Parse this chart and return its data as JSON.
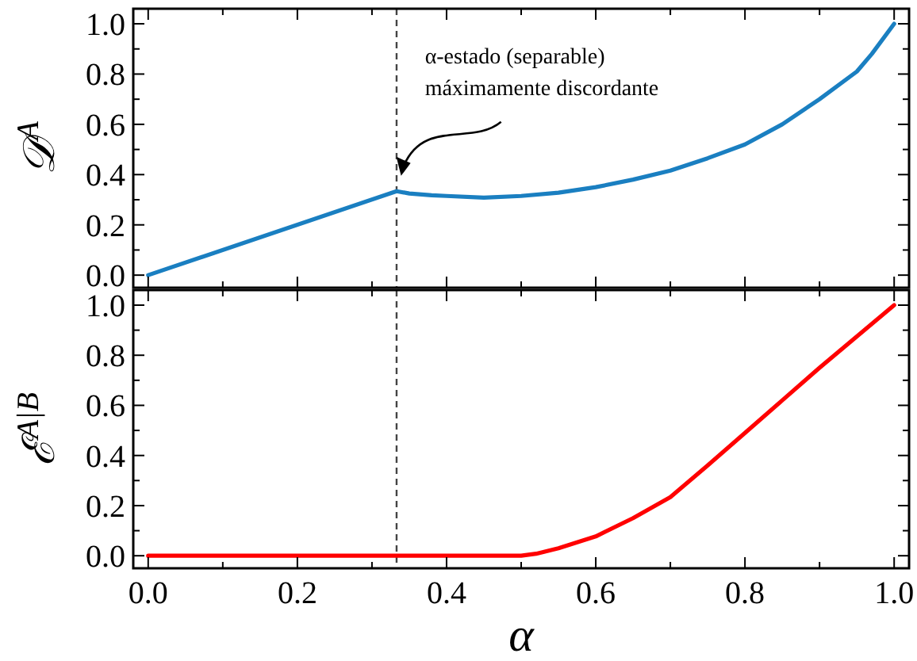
{
  "chart_data": [
    {
      "type": "line",
      "ylabel": "𝒟$^{A}$",
      "xlim": [
        -0.02,
        1.02
      ],
      "ylim": [
        -0.05,
        1.06
      ],
      "xticks": [
        {
          "value": 0,
          "label": null
        },
        {
          "value": 0.1,
          "label": null
        },
        {
          "value": 0.2,
          "label": null
        },
        {
          "value": 0.3,
          "label": null
        },
        {
          "value": 0.4,
          "label": null
        },
        {
          "value": 0.5,
          "label": null
        },
        {
          "value": 0.6,
          "label": null
        },
        {
          "value": 0.7,
          "label": null
        },
        {
          "value": 0.8,
          "label": null
        },
        {
          "value": 0.9,
          "label": null
        },
        {
          "value": 1,
          "label": null
        }
      ],
      "yticks": [
        {
          "value": 0,
          "label": "0.0"
        },
        {
          "value": 0.1,
          "label": null
        },
        {
          "value": 0.2,
          "label": "0.2"
        },
        {
          "value": 0.3,
          "label": null
        },
        {
          "value": 0.4,
          "label": "0.4"
        },
        {
          "value": 0.5,
          "label": null
        },
        {
          "value": 0.6,
          "label": "0.6"
        },
        {
          "value": 0.7,
          "label": null
        },
        {
          "value": 0.8,
          "label": "0.8"
        },
        {
          "value": 0.9,
          "label": null
        },
        {
          "value": 1,
          "label": "1.0"
        }
      ],
      "tick_labels": "y",
      "x": [
        0,
        0.333,
        0.35,
        0.38,
        0.4,
        0.45,
        0.5,
        0.55,
        0.6,
        0.65,
        0.7,
        0.75,
        0.8,
        0.85,
        0.9,
        0.95,
        0.97,
        1.0
      ],
      "series": [
        {
          "color": "#1a7fc1",
          "values": [
            0,
            0.334,
            0.325,
            0.318,
            0.315,
            0.308,
            0.315,
            0.328,
            0.35,
            0.38,
            0.416,
            0.465,
            0.52,
            0.6,
            0.7,
            0.81,
            0.88,
            1.0
          ]
        }
      ],
      "ref_lines": [
        {
          "axis": "x",
          "value": 0.333,
          "color": "#444444",
          "line_style": "dashed"
        }
      ],
      "annotations": [
        "α-estado (separable)\nmáximamente discordante"
      ]
    },
    {
      "type": "line",
      "ylabel": "ℰ$^{A|B}$",
      "xlabel": "α",
      "xlim": [
        -0.02,
        1.02
      ],
      "ylim": [
        -0.05,
        1.06
      ],
      "xticks": [
        {
          "value": 0,
          "label": "0.0"
        },
        {
          "value": 0.1,
          "label": null
        },
        {
          "value": 0.2,
          "label": "0.2"
        },
        {
          "value": 0.3,
          "label": null
        },
        {
          "value": 0.4,
          "label": "0.4"
        },
        {
          "value": 0.5,
          "label": null
        },
        {
          "value": 0.6,
          "label": "0.6"
        },
        {
          "value": 0.7,
          "label": null
        },
        {
          "value": 0.8,
          "label": "0.8"
        },
        {
          "value": 0.9,
          "label": null
        },
        {
          "value": 1,
          "label": "1.0"
        }
      ],
      "yticks": [
        {
          "value": 0,
          "label": "0.0"
        },
        {
          "value": 0.1,
          "label": null
        },
        {
          "value": 0.2,
          "label": "0.2"
        },
        {
          "value": 0.3,
          "label": null
        },
        {
          "value": 0.4,
          "label": "0.4"
        },
        {
          "value": 0.5,
          "label": null
        },
        {
          "value": 0.6,
          "label": "0.6"
        },
        {
          "value": 0.7,
          "label": null
        },
        {
          "value": 0.8,
          "label": "0.8"
        },
        {
          "value": 0.9,
          "label": null
        },
        {
          "value": 1,
          "label": "1.0"
        }
      ],
      "x": [
        0,
        0.5,
        0.52,
        0.55,
        0.6,
        0.65,
        0.7,
        0.75,
        0.8,
        0.85,
        0.9,
        0.95,
        1.0
      ],
      "series": [
        {
          "color": "#ff0000",
          "values": [
            0,
            0,
            0.008,
            0.03,
            0.077,
            0.15,
            0.234,
            0.36,
            0.49,
            0.62,
            0.75,
            0.875,
            1.0
          ]
        }
      ],
      "ref_lines": [
        {
          "axis": "x",
          "value": 0.333,
          "color": "#444444",
          "line_style": "dashed"
        }
      ]
    }
  ]
}
